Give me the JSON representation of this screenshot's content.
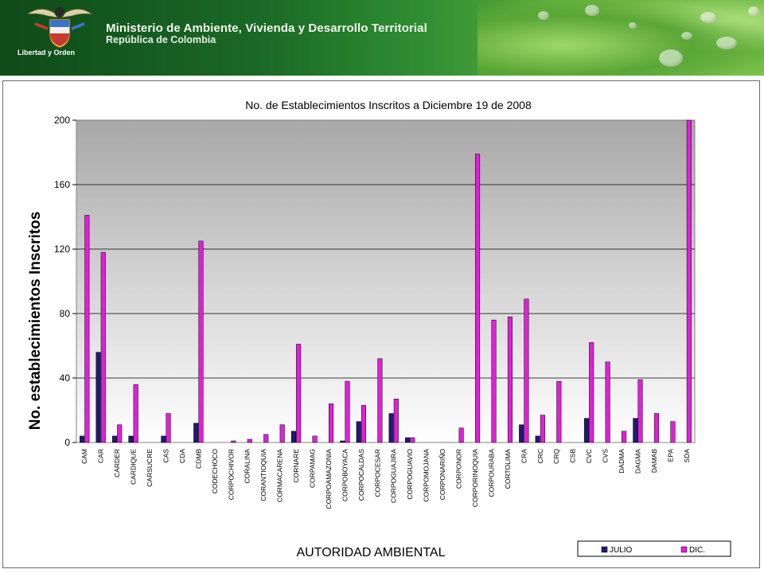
{
  "header": {
    "ministry": "Ministerio de Ambiente, Vivienda y Desarrollo Territorial",
    "country": "República de Colombia",
    "motto": "Libertad y Orden"
  },
  "chart_data": {
    "type": "bar",
    "title": "No. de Establecimientos Inscritos a Diciembre 19 de 2008",
    "xlabel": "AUTORIDAD AMBIENTAL",
    "ylabel": "No. establecimientos Inscritos",
    "ylim": [
      0,
      200
    ],
    "yticks": [
      0,
      40,
      80,
      120,
      160,
      200
    ],
    "grid": true,
    "legend": "bottom-right",
    "categories": [
      "CAM",
      "CAR",
      "CARDER",
      "CARDIQUE",
      "CARSUCRE",
      "CAS",
      "CDA",
      "CDMB",
      "CODECHOCO",
      "CORPOCHIVOR",
      "CORALINA",
      "CORANTIOQUIA",
      "CORMACARENA",
      "CORNARE",
      "CORPAMAG",
      "CORPOAMAZONIA",
      "CORPOBOYACA",
      "CORPOCALDAS",
      "CORPOCESAR",
      "CORPOGUAJIRA",
      "CORPOGUAVIO",
      "CORPOMOJANA",
      "CORPONARIÑO",
      "CORPONOR",
      "CORPORINOQUIA",
      "CORPOURABA",
      "CORTOLIMA",
      "CRA",
      "CRC",
      "CRQ",
      "CSB",
      "CVC",
      "CVS",
      "DADMA",
      "DAGMA",
      "DAMAB",
      "EPA",
      "SDA"
    ],
    "series": [
      {
        "name": "JULIO",
        "color": "#1f1a6e",
        "values": [
          4,
          56,
          4,
          4,
          0,
          4,
          0,
          12,
          0,
          0,
          0,
          0,
          0,
          7,
          0,
          0,
          1,
          13,
          0,
          18,
          3,
          0,
          0,
          0,
          0,
          0,
          0,
          11,
          4,
          0,
          0,
          15,
          0,
          0,
          15,
          0,
          0,
          0
        ]
      },
      {
        "name": "DIC.",
        "color": "#e020d8",
        "values": [
          141,
          118,
          11,
          36,
          0,
          18,
          0,
          125,
          0,
          1,
          2,
          5,
          11,
          61,
          4,
          24,
          38,
          23,
          52,
          27,
          3,
          0,
          0,
          9,
          179,
          76,
          78,
          89,
          17,
          38,
          0,
          62,
          50,
          7,
          39,
          18,
          13,
          201
        ]
      }
    ]
  }
}
